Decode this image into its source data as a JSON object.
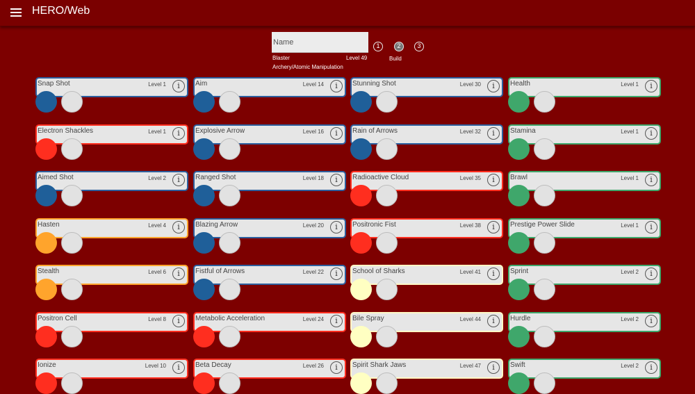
{
  "app": {
    "title": "HERO/Web"
  },
  "header": {
    "name_placeholder": "Name",
    "archetype": "Blaster",
    "level": "Level 49",
    "powersets": "Archery/Atomic Manipulation",
    "builds": [
      "1",
      "2",
      "3"
    ],
    "active_build": "2",
    "build_label": "Build"
  },
  "colors": {
    "background": "#7d0000",
    "blue": "#1f5f99",
    "red": "#ff2e1f",
    "orange": "#ffa42c",
    "cream": "#ffffc2",
    "green": "#3fa76b",
    "border_blue": "#2d5f9e",
    "border_red": "#ff2e1f",
    "border_orange": "#ffa42c",
    "border_cream": "#fff6c4",
    "border_green": "#3fa76b"
  },
  "columns": [
    [
      {
        "name": "Snap Shot",
        "level": "Level 1",
        "color": "blue"
      },
      {
        "name": "Electron Shackles",
        "level": "Level 1",
        "color": "red"
      },
      {
        "name": "Aimed Shot",
        "level": "Level 2",
        "color": "blue"
      },
      {
        "name": "Hasten",
        "level": "Level 4",
        "color": "orange"
      },
      {
        "name": "Stealth",
        "level": "Level 6",
        "color": "orange"
      },
      {
        "name": "Positron Cell",
        "level": "Level 8",
        "color": "red"
      },
      {
        "name": "Ionize",
        "level": "Level 10",
        "color": "red"
      }
    ],
    [
      {
        "name": "Aim",
        "level": "Level 14",
        "color": "blue"
      },
      {
        "name": "Explosive Arrow",
        "level": "Level 16",
        "color": "blue"
      },
      {
        "name": "Ranged Shot",
        "level": "Level 18",
        "color": "blue"
      },
      {
        "name": "Blazing Arrow",
        "level": "Level 20",
        "color": "blue"
      },
      {
        "name": "Fistful of Arrows",
        "level": "Level 22",
        "color": "blue"
      },
      {
        "name": "Metabolic Acceleration",
        "level": "Level 24",
        "color": "red"
      },
      {
        "name": "Beta Decay",
        "level": "Level 26",
        "color": "red"
      }
    ],
    [
      {
        "name": "Stunning Shot",
        "level": "Level 30",
        "color": "blue"
      },
      {
        "name": "Rain of Arrows",
        "level": "Level 32",
        "color": "blue"
      },
      {
        "name": "Radioactive Cloud",
        "level": "Level 35",
        "color": "red"
      },
      {
        "name": "Positronic Fist",
        "level": "Level 38",
        "color": "red"
      },
      {
        "name": "School of Sharks",
        "level": "Level 41",
        "color": "cream"
      },
      {
        "name": "Bile Spray",
        "level": "Level 44",
        "color": "cream"
      },
      {
        "name": "Spirit Shark Jaws",
        "level": "Level 47",
        "color": "cream"
      }
    ],
    [
      {
        "name": "Health",
        "level": "Level 1",
        "color": "green"
      },
      {
        "name": "Stamina",
        "level": "Level 1",
        "color": "green"
      },
      {
        "name": "Brawl",
        "level": "Level 1",
        "color": "green"
      },
      {
        "name": "Prestige Power Slide",
        "level": "Level 1",
        "color": "green"
      },
      {
        "name": "Sprint",
        "level": "Level 2",
        "color": "green"
      },
      {
        "name": "Hurdle",
        "level": "Level 2",
        "color": "green"
      },
      {
        "name": "Swift",
        "level": "Level 2",
        "color": "green"
      }
    ]
  ],
  "icons": {
    "menu": "menu-icon",
    "info": "info-icon",
    "info_glyph": "i"
  }
}
